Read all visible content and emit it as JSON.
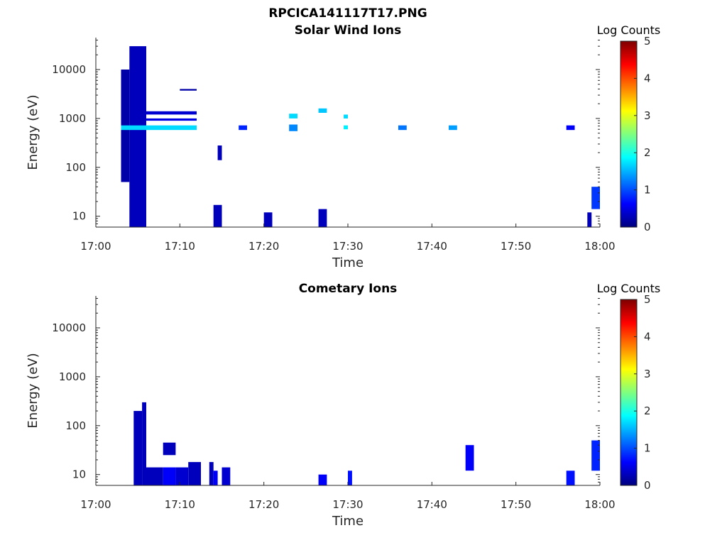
{
  "figure": {
    "title": "RPCICA141117T17.PNG"
  },
  "colors": {
    "axis": "#262626",
    "background": "#ffffff",
    "colormap": [
      "#00007f",
      "#0000ff",
      "#007fff",
      "#00ffff",
      "#7fff7f",
      "#ffff00",
      "#ff7f00",
      "#ff0000",
      "#7f0000"
    ]
  },
  "chart_data": [
    {
      "type": "heatmap",
      "title": "Solar Wind Ions",
      "xlabel": "Time",
      "ylabel": "Energy (eV)",
      "yscale": "log",
      "xlim": [
        "17:00",
        "18:00"
      ],
      "ylim": [
        6,
        45000
      ],
      "xticks": [
        "17:00",
        "17:10",
        "17:20",
        "17:30",
        "17:40",
        "17:50",
        "18:00"
      ],
      "yticks": [
        10,
        100,
        1000,
        10000
      ],
      "ytick_labels": [
        "10",
        "100",
        "1000",
        "10000"
      ],
      "colorbar": {
        "label": "Log Counts",
        "range": [
          0,
          5
        ],
        "ticks": [
          "0",
          "1",
          "2",
          "3",
          "4",
          "5"
        ]
      },
      "cells": [
        {
          "t0": "17:03",
          "t1": "17:04",
          "e0": 50,
          "e1": 10000,
          "v": 0.2
        },
        {
          "t0": "17:04",
          "t1": "17:06",
          "e0": 6,
          "e1": 30000,
          "v": 0.3
        },
        {
          "t0": "17:06",
          "t1": "17:12",
          "e0": 1200,
          "e1": 1400,
          "v": 0.4
        },
        {
          "t0": "17:06",
          "t1": "17:12",
          "e0": 900,
          "e1": 1000,
          "v": 0.5
        },
        {
          "t0": "17:03",
          "t1": "17:12",
          "e0": 580,
          "e1": 720,
          "v": 1.7
        },
        {
          "t0": "17:10",
          "t1": "17:12",
          "e0": 3700,
          "e1": 4000,
          "v": 0.2
        },
        {
          "t0": "17:14",
          "t1": "17:15",
          "e0": 6,
          "e1": 17,
          "v": 0.3
        },
        {
          "t0": "17:14.5",
          "t1": "17:15",
          "e0": 140,
          "e1": 280,
          "v": 0.3
        },
        {
          "t0": "17:17",
          "t1": "17:18",
          "e0": 580,
          "e1": 720,
          "v": 0.8
        },
        {
          "t0": "17:20",
          "t1": "17:21",
          "e0": 6,
          "e1": 12,
          "v": 0.3
        },
        {
          "t0": "17:23",
          "t1": "17:24",
          "e0": 550,
          "e1": 750,
          "v": 1.3
        },
        {
          "t0": "17:23",
          "t1": "17:24",
          "e0": 1000,
          "e1": 1250,
          "v": 1.7
        },
        {
          "t0": "17:26.5",
          "t1": "17:27.5",
          "e0": 6,
          "e1": 14,
          "v": 0.3
        },
        {
          "t0": "17:26.5",
          "t1": "17:27.5",
          "e0": 1300,
          "e1": 1600,
          "v": 1.6
        },
        {
          "t0": "17:29.5",
          "t1": "17:30",
          "e0": 600,
          "e1": 720,
          "v": 1.8
        },
        {
          "t0": "17:29.5",
          "t1": "17:30",
          "e0": 1000,
          "e1": 1200,
          "v": 1.7
        },
        {
          "t0": "17:36",
          "t1": "17:37",
          "e0": 580,
          "e1": 720,
          "v": 1.2
        },
        {
          "t0": "17:42",
          "t1": "17:43",
          "e0": 580,
          "e1": 720,
          "v": 1.4
        },
        {
          "t0": "17:56",
          "t1": "17:57",
          "e0": 580,
          "e1": 720,
          "v": 0.6
        },
        {
          "t0": "17:59",
          "t1": "18:00",
          "e0": 14,
          "e1": 40,
          "v": 0.9
        },
        {
          "t0": "17:58.5",
          "t1": "17:59",
          "e0": 6,
          "e1": 12,
          "v": 0.3
        }
      ]
    },
    {
      "type": "heatmap",
      "title": "Cometary Ions",
      "xlabel": "Time",
      "ylabel": "Energy (eV)",
      "yscale": "log",
      "xlim": [
        "17:00",
        "18:00"
      ],
      "ylim": [
        6,
        45000
      ],
      "xticks": [
        "17:00",
        "17:10",
        "17:20",
        "17:30",
        "17:40",
        "17:50",
        "18:00"
      ],
      "yticks": [
        10,
        100,
        1000,
        10000
      ],
      "ytick_labels": [
        "10",
        "100",
        "1000",
        "10000"
      ],
      "colorbar": {
        "label": "Log Counts",
        "range": [
          0,
          5
        ],
        "ticks": [
          "0",
          "1",
          "2",
          "3",
          "4",
          "5"
        ]
      },
      "cells": [
        {
          "t0": "17:04.5",
          "t1": "17:05.5",
          "e0": 6,
          "e1": 200,
          "v": 0.3
        },
        {
          "t0": "17:05.5",
          "t1": "17:06",
          "e0": 6,
          "e1": 300,
          "v": 0.3
        },
        {
          "t0": "17:06",
          "t1": "17:08",
          "e0": 6,
          "e1": 14,
          "v": 0.3
        },
        {
          "t0": "17:08",
          "t1": "17:09.5",
          "e0": 25,
          "e1": 45,
          "v": 0.3
        },
        {
          "t0": "17:08",
          "t1": "17:09.5",
          "e0": 6,
          "e1": 14,
          "v": 0.6
        },
        {
          "t0": "17:09.5",
          "t1": "17:11",
          "e0": 6,
          "e1": 14,
          "v": 0.4
        },
        {
          "t0": "17:11",
          "t1": "17:12.5",
          "e0": 6,
          "e1": 18,
          "v": 0.3
        },
        {
          "t0": "17:13.5",
          "t1": "17:14",
          "e0": 6,
          "e1": 18,
          "v": 0.3
        },
        {
          "t0": "17:14",
          "t1": "17:14.5",
          "e0": 6,
          "e1": 12,
          "v": 0.6
        },
        {
          "t0": "17:15",
          "t1": "17:16",
          "e0": 6,
          "e1": 14,
          "v": 0.4
        },
        {
          "t0": "17:26.5",
          "t1": "17:27.5",
          "e0": 6,
          "e1": 10,
          "v": 0.6
        },
        {
          "t0": "17:30",
          "t1": "17:30.5",
          "e0": 6,
          "e1": 12,
          "v": 0.7
        },
        {
          "t0": "17:44",
          "t1": "17:45",
          "e0": 12,
          "e1": 40,
          "v": 0.6
        },
        {
          "t0": "17:56",
          "t1": "17:57",
          "e0": 6,
          "e1": 12,
          "v": 0.7
        },
        {
          "t0": "17:59",
          "t1": "18:00",
          "e0": 12,
          "e1": 50,
          "v": 0.8
        }
      ]
    }
  ]
}
